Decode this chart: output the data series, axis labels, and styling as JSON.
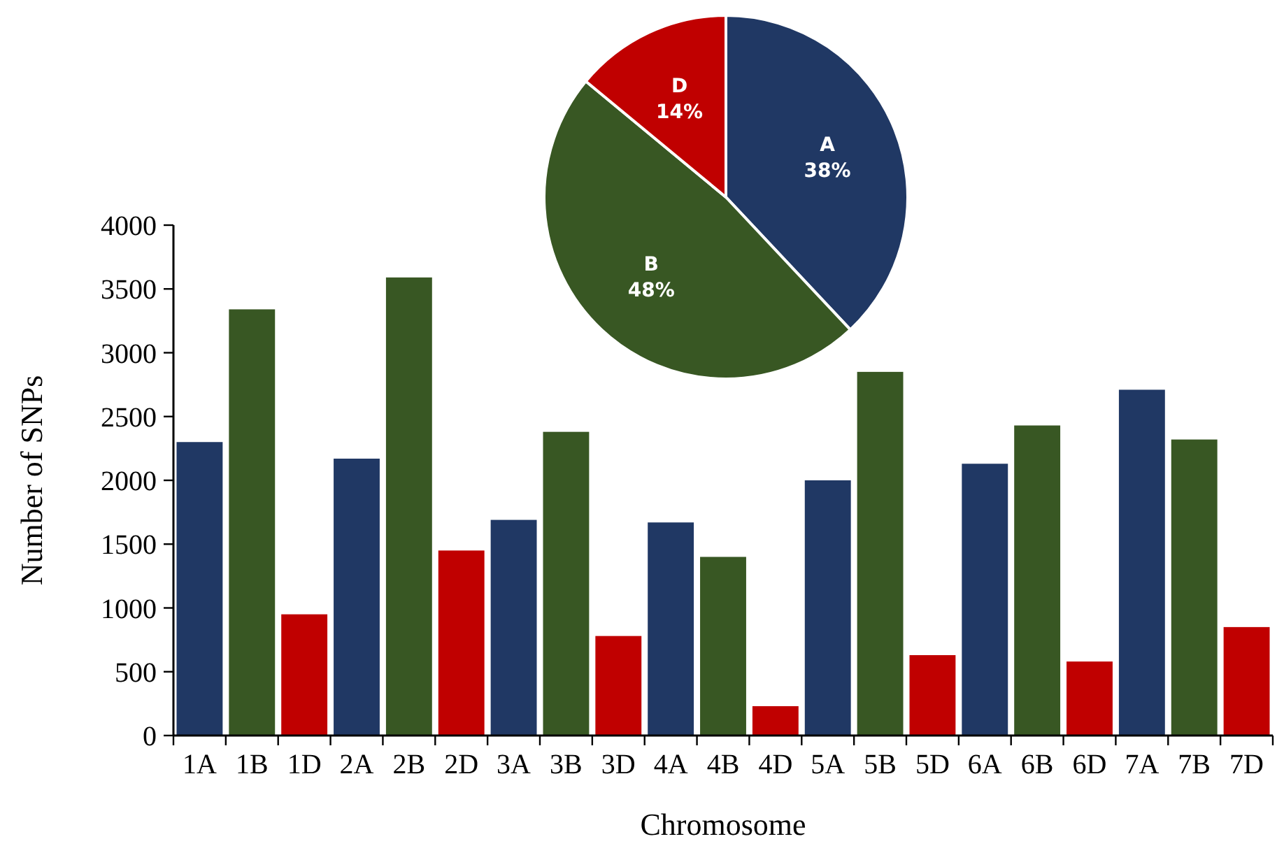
{
  "chart_data": [
    {
      "type": "bar",
      "xlabel": "Chromosome",
      "ylabel": "Number of SNPs",
      "categories": [
        "1A",
        "1B",
        "1D",
        "2A",
        "2B",
        "2D",
        "3A",
        "3B",
        "3D",
        "4A",
        "4B",
        "4D",
        "5A",
        "5B",
        "5D",
        "6A",
        "6B",
        "6D",
        "7A",
        "7B",
        "7D"
      ],
      "values": [
        2300,
        3340,
        950,
        2170,
        3590,
        1450,
        1690,
        2380,
        780,
        1670,
        1400,
        230,
        2000,
        2850,
        630,
        2130,
        2430,
        580,
        2710,
        2320,
        850
      ],
      "colors": [
        "#203864",
        "#385723",
        "#c00000",
        "#203864",
        "#385723",
        "#c00000",
        "#203864",
        "#385723",
        "#c00000",
        "#203864",
        "#385723",
        "#c00000",
        "#203864",
        "#385723",
        "#c00000",
        "#203864",
        "#385723",
        "#c00000",
        "#203864",
        "#385723",
        "#c00000"
      ],
      "ylim": [
        0,
        4000
      ],
      "yticks": [
        0,
        500,
        1000,
        1500,
        2000,
        2500,
        3000,
        3500,
        4000
      ],
      "grid": false
    },
    {
      "type": "pie",
      "categories": [
        "A",
        "B",
        "D"
      ],
      "values": [
        38,
        48,
        14
      ],
      "colors": [
        "#203864",
        "#385723",
        "#c00000"
      ],
      "value_labels": [
        "38%",
        "48%",
        "14%"
      ]
    }
  ]
}
